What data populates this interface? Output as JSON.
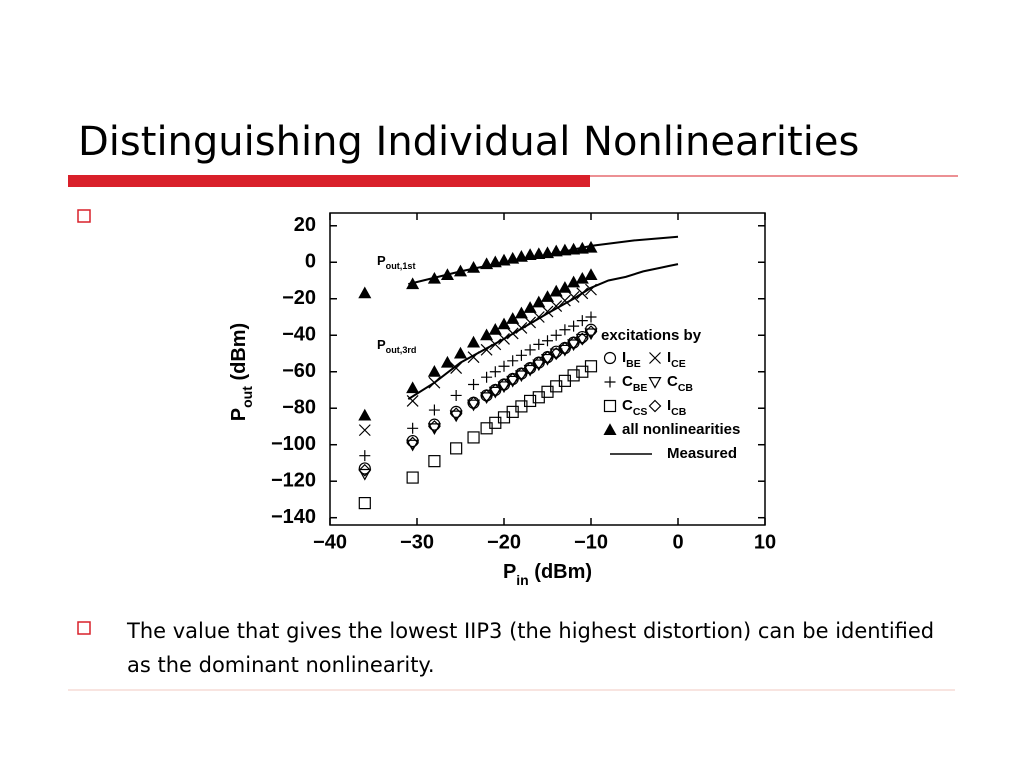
{
  "title": "Distinguishing Individual Nonlinearities",
  "bullets": [
    "",
    "The value that gives the lowest IIP3 (the highest distortion) can be identified as the dominant nonlinearity."
  ],
  "chart_data": {
    "type": "scatter",
    "xlabel": "Pin (dBm)",
    "ylabel": "Pout (dBm)",
    "legend_title": "excitations by",
    "annotations": [
      "Pout,1st",
      "Pout,3rd"
    ],
    "xlim": [
      -40,
      10
    ],
    "ylim": [
      -144,
      27
    ],
    "xticks": [
      {
        "value": -40,
        "label": "−40"
      },
      {
        "value": -30,
        "label": "−30"
      },
      {
        "value": -20,
        "label": "−20"
      },
      {
        "value": -10,
        "label": "−10"
      },
      0,
      10
    ],
    "yticks": [
      20,
      0,
      {
        "value": -20,
        "label": "−20"
      },
      {
        "value": -40,
        "label": "−40"
      },
      {
        "value": -60,
        "label": "−60"
      },
      {
        "value": -80,
        "label": "−80"
      },
      {
        "value": -100,
        "label": "−100"
      },
      {
        "value": -120,
        "label": "−120"
      },
      {
        "value": -140,
        "label": "−140"
      }
    ],
    "grid": false,
    "legend": "right",
    "series": [
      {
        "name": "IBE",
        "marker": "circle",
        "color": "#000000",
        "x": [
          -36,
          -30.5,
          -28,
          -25.5,
          -23.5,
          -22,
          -21,
          -20,
          -19,
          -18,
          -17,
          -16,
          -15,
          -14,
          -13,
          -12,
          -11,
          -10
        ],
        "values": [
          -113,
          -98,
          -89,
          -82,
          -77,
          -73,
          -70,
          -67,
          -64,
          -61,
          -58,
          -55,
          -52,
          -49,
          -47,
          -44,
          -41,
          -37
        ]
      },
      {
        "name": "ICE",
        "marker": "x",
        "color": "#000000",
        "x": [
          -36,
          -30.5,
          -28,
          -25.5,
          -23.5,
          -22,
          -21,
          -20,
          -19,
          -18,
          -17,
          -16,
          -15,
          -14,
          -13,
          -12,
          -11,
          -10
        ],
        "values": [
          -92,
          -76,
          -66,
          -58,
          -52,
          -48,
          -45,
          -42,
          -39,
          -36,
          -33,
          -30,
          -27,
          -24,
          -21,
          -19,
          -17,
          -15
        ]
      },
      {
        "name": "CBE",
        "marker": "plus",
        "color": "#000000",
        "x": [
          -36,
          -30.5,
          -28,
          -25.5,
          -23.5,
          -22,
          -21,
          -20,
          -19,
          -18,
          -17,
          -16,
          -15,
          -14,
          -13,
          -12,
          -11,
          -10
        ],
        "values": [
          -106,
          -91,
          -81,
          -73,
          -67,
          -63,
          -60,
          -57,
          -54,
          -51,
          -48,
          -45,
          -43,
          -40,
          -37,
          -35,
          -32,
          -30
        ]
      },
      {
        "name": "CCB",
        "marker": "triangle-down",
        "color": "#000000",
        "x": [
          -36,
          -30.5,
          -28,
          -25.5,
          -23.5,
          -22,
          -21,
          -20,
          -19,
          -18,
          -17,
          -16,
          -15,
          -14,
          -13,
          -12,
          -11,
          -10
        ],
        "values": [
          -116,
          -100,
          -91,
          -84,
          -78,
          -74,
          -71,
          -68,
          -65,
          -62,
          -59,
          -56,
          -53,
          -50,
          -48,
          -45,
          -42,
          -39
        ]
      },
      {
        "name": "CCS",
        "marker": "square",
        "color": "#000000",
        "x": [
          -36,
          -30.5,
          -28,
          -25.5,
          -23.5,
          -22,
          -21,
          -20,
          -19,
          -18,
          -17,
          -16,
          -15,
          -14,
          -13,
          -12,
          -11,
          -10
        ],
        "values": [
          -132,
          -118,
          -109,
          -102,
          -96,
          -91,
          -88,
          -85,
          -82,
          -79,
          -76,
          -74,
          -71,
          -68,
          -65,
          -62,
          -60,
          -57
        ]
      },
      {
        "name": "ICB",
        "marker": "diamond",
        "color": "#000000",
        "x": [
          -36,
          -30.5,
          -28,
          -25.5,
          -23.5,
          -22,
          -21,
          -20,
          -19,
          -18,
          -17,
          -16,
          -15,
          -14,
          -13,
          -12,
          -11,
          -10
        ],
        "values": [
          -114,
          -99,
          -90,
          -83,
          -77,
          -73,
          -70,
          -67,
          -64,
          -61,
          -58,
          -55,
          -52,
          -50,
          -47,
          -44,
          -42,
          -38
        ]
      },
      {
        "name": "all nonlinearities",
        "marker": "triangle",
        "color": "#000000",
        "x": [
          -36,
          -30.5,
          -28,
          -26.5,
          -25,
          -23.5,
          -22,
          -21,
          -20,
          -19,
          -18,
          -17,
          -16,
          -15,
          -14,
          -13,
          -12,
          -11,
          -10,
          -36,
          -30.5,
          -28,
          -26.5,
          -25,
          -23.5,
          -22,
          -21,
          -20,
          -19,
          -18,
          -17,
          -16,
          -15,
          -14,
          -13,
          -12,
          -11,
          -10
        ],
        "values": [
          -17,
          -12,
          -9,
          -7,
          -5,
          -3,
          -1,
          0,
          1,
          2,
          3,
          4,
          4.5,
          5,
          6,
          6.5,
          7,
          7.5,
          8,
          -84,
          -69,
          -60,
          -55,
          -50,
          -44,
          -40,
          -37,
          -34,
          -31,
          -28,
          -25,
          -22,
          -19,
          -16,
          -14,
          -11,
          -9,
          -7
        ]
      },
      {
        "name": "Measured",
        "marker": "line",
        "color": "#000000",
        "x": [
          -31,
          -25,
          -20,
          -15,
          -10,
          -5,
          0,
          null,
          -31,
          -28,
          -25,
          -20,
          -15,
          -12,
          -10,
          -8,
          -6,
          -4,
          -2,
          -1,
          0
        ],
        "values": [
          -12,
          -5,
          0,
          4,
          9,
          12,
          14,
          null,
          -75,
          -66,
          -55,
          -42,
          -28,
          -20,
          -14,
          -10,
          -8,
          -5,
          -3,
          -2,
          -1
        ]
      }
    ]
  }
}
